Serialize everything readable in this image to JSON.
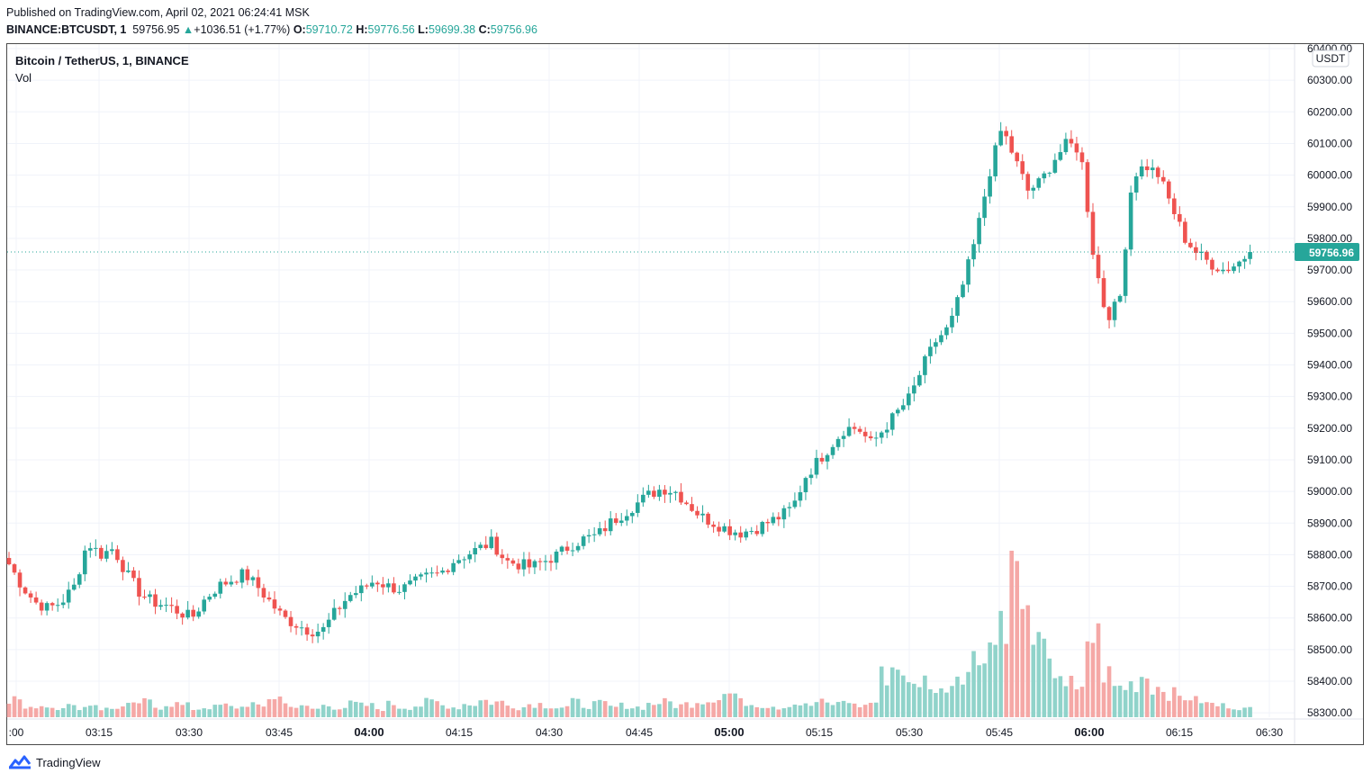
{
  "published": "Published on TradingView.com, April 02, 2021 06:24:41 MSK",
  "quote": {
    "symbol": "BINANCE:BTCUSDT, 1",
    "last": "59756.95",
    "change": "+1036.51 (+1.77%)",
    "o_label": "O:",
    "o": "59710.72",
    "h_label": "H:",
    "h": "59776.56",
    "l_label": "L:",
    "l": "59699.38",
    "c_label": "C:",
    "c": "59756.96"
  },
  "legend": {
    "title": "Bitcoin / TetherUS, 1, BINANCE",
    "vol": "Vol"
  },
  "currency_badge": "USDT",
  "price_label": "59756.96",
  "brand": "TradingView",
  "colors": {
    "up": "#26a69a",
    "down": "#ef5350",
    "up_vol": "#90d3ca",
    "down_vol": "#f5a8a6",
    "grid": "#f0f3fa"
  },
  "chart_data": {
    "type": "candlestick",
    "title": "Bitcoin / TetherUS, 1, BINANCE",
    "y_axis": {
      "side": "right",
      "ylim": [
        58270,
        60410
      ],
      "ticks": [
        58300,
        58400,
        58500,
        58600,
        58700,
        58800,
        58900,
        59000,
        59100,
        59200,
        59300,
        59400,
        59500,
        59600,
        59700,
        59800,
        59900,
        60000,
        60100,
        60200,
        60300,
        60400
      ],
      "tick_labels": [
        "58300.00",
        "58400.00",
        "58500.00",
        "58600.00",
        "58700.00",
        "58800.00",
        "58900.00",
        "59000.00",
        "59100.00",
        "59200.00",
        "59300.00",
        "59400.00",
        "59500.00",
        "59600.00",
        "59700.00",
        "59800.00",
        "59900.00",
        "60000.00",
        "60100.00",
        "60200.00",
        "60300.00",
        "60400.00"
      ]
    },
    "x_axis": {
      "ticks": [
        ":00",
        "03:15",
        "03:30",
        "03:45",
        "04:00",
        "04:15",
        "04:30",
        "04:45",
        "05:00",
        "05:15",
        "05:30",
        "05:45",
        "06:00",
        "06:15",
        "06:30"
      ],
      "bold_ticks": [
        "04:00",
        "05:00",
        "06:00"
      ]
    },
    "last_price": 59756.96,
    "series": [
      {
        "name": "Bitcoin / TetherUS",
        "keyframes_close": [
          58770,
          58700,
          58650,
          58630,
          58650,
          58700,
          58840,
          58800,
          58820,
          58740,
          58680,
          58650,
          58640,
          58620,
          58600,
          58660,
          58700,
          58720,
          58740,
          58700,
          58650,
          58600,
          58580,
          58560,
          58560,
          58620,
          58670,
          58690,
          58720,
          58700,
          58690,
          58710,
          58730,
          58740,
          58780,
          58800,
          58820,
          58840,
          58780,
          58770,
          58760,
          58780,
          58800,
          58830,
          58850,
          58860,
          58900,
          58930,
          58960,
          58990,
          59010,
          59000,
          58960,
          58920,
          58900,
          58880,
          58870,
          58880,
          58900,
          58920,
          58950,
          59050,
          59100,
          59150,
          59200,
          59200,
          59150,
          59200,
          59250,
          59300,
          59400,
          59480,
          59520,
          59650,
          59800,
          60000,
          60150,
          60050,
          59950,
          59980,
          60050,
          60100,
          60080,
          59750,
          59550,
          59600,
          60000,
          60030,
          60000,
          59900,
          59800,
          59750,
          59720,
          59700,
          59720,
          59757
        ]
      },
      {
        "name": "Vol",
        "values_relative": [
          0.11,
          0.05,
          0.07,
          0.06,
          0.07,
          0.06,
          0.08,
          0.05,
          0.06,
          0.07,
          0.09,
          0.06,
          0.08,
          0.07,
          0.05,
          0.06,
          0.07,
          0.06,
          0.08,
          0.06,
          0.12,
          0.08,
          0.06,
          0.05,
          0.07,
          0.06,
          0.08,
          0.07,
          0.05,
          0.08,
          0.06,
          0.07,
          0.09,
          0.07,
          0.06,
          0.08,
          0.1,
          0.09,
          0.07,
          0.06,
          0.08,
          0.07,
          0.06,
          0.09,
          0.07,
          0.08,
          0.06,
          0.07,
          0.06,
          0.08,
          0.09,
          0.07,
          0.08,
          0.1,
          0.12,
          0.14,
          0.09,
          0.08,
          0.07,
          0.06,
          0.08,
          0.07,
          0.09,
          0.08,
          0.1,
          0.07,
          0.09,
          0.25,
          0.3,
          0.18,
          0.22,
          0.15,
          0.2,
          0.28,
          0.35,
          0.45,
          0.62,
          0.98,
          0.58,
          0.4,
          0.28,
          0.2,
          0.15,
          0.48,
          0.26,
          0.18,
          0.2,
          0.25,
          0.18,
          0.14,
          0.12,
          0.1,
          0.08,
          0.07,
          0.06,
          0.05
        ]
      }
    ],
    "grid": true,
    "legend": "top-left"
  }
}
